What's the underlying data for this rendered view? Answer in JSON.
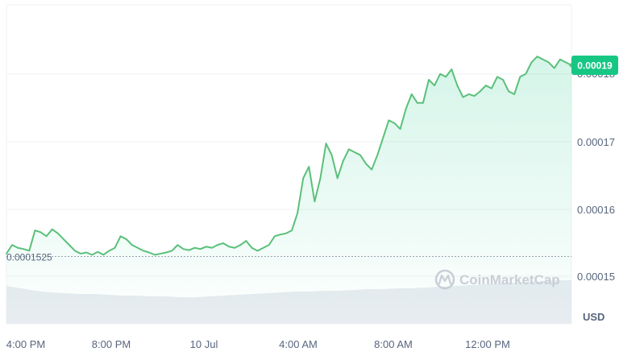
{
  "chart_data": {
    "type": "area",
    "watermark": "CoinMarketCap",
    "currency": "USD",
    "current_price_label": "0.00019",
    "baseline_label": "0.0001525",
    "baseline_value": 0.0001525,
    "y_ticks": [
      {
        "value": 0.00018,
        "label": "0.00018"
      },
      {
        "value": 0.00017,
        "label": "0.00017"
      },
      {
        "value": 0.00016,
        "label": "0.00016"
      },
      {
        "value": 0.00015,
        "label": "0.00015"
      }
    ],
    "ylim": [
      0.0001491,
      0.0001905
    ],
    "x_ticks": [
      {
        "label": "4:00 PM"
      },
      {
        "label": "8:00 PM"
      },
      {
        "label": "10 Jul"
      },
      {
        "label": "4:00 AM"
      },
      {
        "label": "8:00 AM"
      },
      {
        "label": "12:00 PM"
      }
    ],
    "grid": true,
    "colors": {
      "line": "#5ac07a",
      "fill": "#16c784",
      "grid": "#eff2f5",
      "badge": "#16c784",
      "volume": "#e8ecf1",
      "baseline": "#9aa3b1"
    },
    "series": [
      {
        "values": [
          0.000153,
          0.0001545,
          0.000154,
          0.0001538,
          0.0001535,
          0.000157,
          0.0001567,
          0.000156,
          0.0001572,
          0.0001565,
          0.0001555,
          0.0001545,
          0.0001535,
          0.000153,
          0.0001532,
          0.0001528,
          0.0001533,
          0.0001528,
          0.0001535,
          0.000154,
          0.000156,
          0.0001555,
          0.0001545,
          0.000154,
          0.0001535,
          0.0001532,
          0.0001528,
          0.000153,
          0.0001532,
          0.0001535,
          0.0001545,
          0.0001538,
          0.0001536,
          0.000154,
          0.0001538,
          0.0001542,
          0.000154,
          0.0001545,
          0.0001548,
          0.0001542,
          0.000154,
          0.0001545,
          0.0001552,
          0.000154,
          0.0001535,
          0.000154,
          0.0001545,
          0.000156,
          0.0001563,
          0.0001565,
          0.000157,
          0.00016,
          0.000166,
          0.000168,
          0.000162,
          0.000166,
          0.000172,
          0.00017,
          0.000166,
          0.000169,
          0.000171,
          0.0001705,
          0.00017,
          0.0001685,
          0.0001675,
          0.00017,
          0.000173,
          0.000176,
          0.0001755,
          0.0001745,
          0.000178,
          0.0001805,
          0.000179,
          0.000179,
          0.000183,
          0.000182,
          0.000184,
          0.0001835,
          0.0001848,
          0.000182,
          0.00018,
          0.0001805,
          0.0001802,
          0.000181,
          0.000182,
          0.0001815,
          0.0001835,
          0.000183,
          0.000181,
          0.0001805,
          0.0001835,
          0.000184,
          0.000186,
          0.000187,
          0.0001865,
          0.000186,
          0.000185,
          0.0001865,
          0.000186,
          0.0001855
        ]
      }
    ]
  }
}
